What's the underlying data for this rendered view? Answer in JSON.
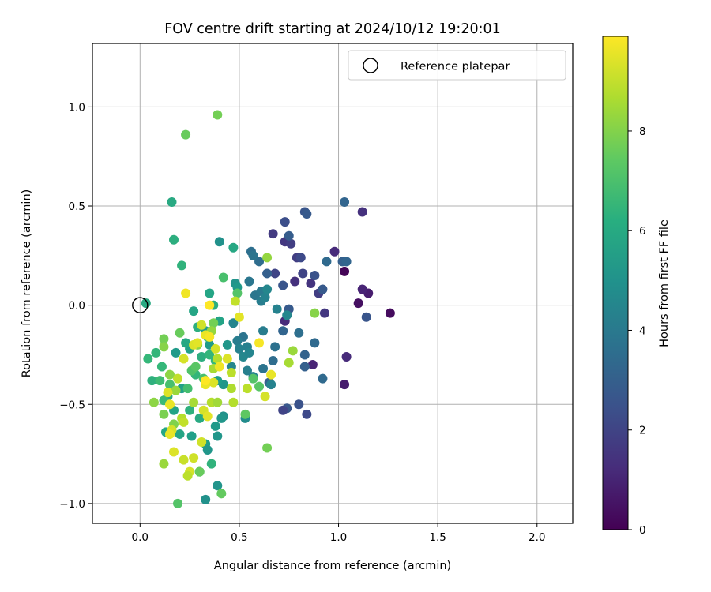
{
  "chart_data": {
    "type": "scatter",
    "title": "FOV centre drift starting at 2024/10/12 19:20:01",
    "xlabel": "Angular distance from reference (arcmin)",
    "ylabel": "Rotation from reference (arcmin)",
    "xlim": [
      -0.24,
      2.18
    ],
    "ylim": [
      -1.1,
      1.32
    ],
    "xticks": [
      0.0,
      0.5,
      1.0,
      1.5,
      2.0
    ],
    "xtick_labels": [
      "0.0",
      "0.5",
      "1.0",
      "1.5",
      "2.0"
    ],
    "yticks": [
      -1.0,
      -0.5,
      0.0,
      0.5,
      1.0
    ],
    "ytick_labels": [
      "−1.0",
      "−0.5",
      "0.0",
      "0.5",
      "1.0"
    ],
    "grid": true,
    "legend": {
      "location": "upper right",
      "entries": [
        "Reference platepar"
      ]
    },
    "reference_point": {
      "x": 0.0,
      "y": 0.0,
      "label": "Reference platepar"
    },
    "colorbar": {
      "label": "Hours from first FF file",
      "colormap": "viridis",
      "range": [
        0,
        9.9
      ],
      "ticks": [
        0,
        2,
        4,
        6,
        8
      ],
      "tick_labels": [
        "0",
        "2",
        "4",
        "6",
        "8"
      ]
    },
    "series": [
      {
        "name": "FOV centre drift",
        "color_by": "hours",
        "points": [
          [
            1.03,
            0.17,
            0.1
          ],
          [
            1.1,
            0.01,
            0.4
          ],
          [
            1.26,
            -0.04,
            0.3
          ],
          [
            1.15,
            0.06,
            0.8
          ],
          [
            1.12,
            0.08,
            1.0
          ],
          [
            1.03,
            -0.4,
            0.8
          ],
          [
            1.04,
            -0.26,
            1.2
          ],
          [
            0.87,
            -0.3,
            1.0
          ],
          [
            0.98,
            0.27,
            1.2
          ],
          [
            1.12,
            0.47,
            1.4
          ],
          [
            0.93,
            -0.04,
            1.6
          ],
          [
            0.9,
            0.06,
            1.8
          ],
          [
            0.86,
            0.11,
            1.5
          ],
          [
            0.82,
            0.16,
            2.0
          ],
          [
            0.79,
            0.24,
            1.8
          ],
          [
            0.73,
            0.32,
            1.6
          ],
          [
            0.76,
            0.31,
            1.8
          ],
          [
            0.73,
            -0.08,
            1.2
          ],
          [
            0.67,
            0.36,
            1.7
          ],
          [
            0.78,
            0.12,
            1.4
          ],
          [
            0.68,
            0.16,
            2.0
          ],
          [
            0.81,
            0.24,
            2.2
          ],
          [
            0.83,
            0.47,
            2.6
          ],
          [
            0.84,
            0.46,
            2.8
          ],
          [
            1.03,
            0.52,
            3.2
          ],
          [
            0.88,
            0.15,
            2.5
          ],
          [
            0.92,
            0.08,
            2.8
          ],
          [
            0.94,
            0.22,
            3.4
          ],
          [
            1.02,
            0.22,
            3.0
          ],
          [
            1.04,
            0.22,
            3.2
          ],
          [
            0.73,
            0.42,
            2.4
          ],
          [
            0.75,
            0.35,
            2.9
          ],
          [
            0.72,
            0.1,
            2.6
          ],
          [
            0.75,
            -0.02,
            2.8
          ],
          [
            0.64,
            0.16,
            3.0
          ],
          [
            1.14,
            -0.06,
            2.6
          ],
          [
            0.88,
            -0.19,
            3.4
          ],
          [
            0.83,
            -0.25,
            3.1
          ],
          [
            0.8,
            -0.5,
            2.5
          ],
          [
            0.84,
            -0.55,
            2.2
          ],
          [
            0.74,
            -0.52,
            2.7
          ],
          [
            0.72,
            -0.53,
            2.0
          ],
          [
            0.83,
            -0.31,
            3.0
          ],
          [
            0.92,
            -0.37,
            3.4
          ],
          [
            0.8,
            -0.14,
            3.6
          ],
          [
            0.72,
            -0.13,
            3.2
          ],
          [
            0.67,
            -0.28,
            3.5
          ],
          [
            0.68,
            -0.21,
            3.7
          ],
          [
            0.65,
            -0.39,
            3.0
          ],
          [
            0.62,
            -0.32,
            3.8
          ],
          [
            0.58,
            0.05,
            3.9
          ],
          [
            0.6,
            0.22,
            3.5
          ],
          [
            0.56,
            0.27,
            3.6
          ],
          [
            0.57,
            0.25,
            3.8
          ],
          [
            0.55,
            0.12,
            3.9
          ],
          [
            0.61,
            0.07,
            4.0
          ],
          [
            0.61,
            0.02,
            4.2
          ],
          [
            0.63,
            0.04,
            4.4
          ],
          [
            0.64,
            0.08,
            4.6
          ],
          [
            0.69,
            -0.02,
            4.4
          ],
          [
            0.74,
            -0.05,
            4.6
          ],
          [
            0.66,
            -0.4,
            4.4
          ],
          [
            0.62,
            -0.13,
            4.2
          ],
          [
            0.52,
            -0.16,
            3.8
          ],
          [
            0.54,
            -0.21,
            4.3
          ],
          [
            0.49,
            -0.18,
            4.2
          ],
          [
            0.5,
            -0.22,
            4.4
          ],
          [
            0.52,
            -0.26,
            4.6
          ],
          [
            0.55,
            -0.24,
            4.5
          ],
          [
            0.47,
            -0.09,
            4.5
          ],
          [
            0.54,
            -0.33,
            4.3
          ],
          [
            0.57,
            -0.36,
            4.4
          ],
          [
            0.46,
            -0.31,
            4.6
          ],
          [
            0.53,
            -0.57,
            4.8
          ],
          [
            0.42,
            -0.56,
            5.0
          ],
          [
            0.41,
            -0.57,
            5.2
          ],
          [
            0.39,
            -0.66,
            5.2
          ],
          [
            0.38,
            -0.61,
            5.3
          ],
          [
            0.33,
            -0.7,
            5.5
          ],
          [
            0.34,
            -0.73,
            5.2
          ],
          [
            0.39,
            -0.91,
            5.1
          ],
          [
            0.33,
            -0.98,
            5.0
          ],
          [
            0.42,
            -0.4,
            5.2
          ],
          [
            0.39,
            -0.38,
            5.5
          ],
          [
            0.35,
            -0.2,
            5.4
          ],
          [
            0.33,
            -0.13,
            5.5
          ],
          [
            0.4,
            -0.08,
            5.7
          ],
          [
            0.44,
            -0.2,
            5.2
          ],
          [
            0.48,
            0.11,
            5.1
          ],
          [
            0.49,
            0.09,
            5.3
          ],
          [
            0.4,
            0.32,
            5.0
          ],
          [
            0.47,
            0.29,
            5.9
          ],
          [
            0.35,
            0.06,
            5.8
          ],
          [
            0.37,
            0.0,
            6.2
          ],
          [
            0.27,
            -0.03,
            5.8
          ],
          [
            0.25,
            -0.22,
            5.6
          ],
          [
            0.23,
            -0.19,
            5.9
          ],
          [
            0.18,
            -0.24,
            5.4
          ],
          [
            0.21,
            -0.42,
            5.6
          ],
          [
            0.14,
            -0.46,
            6.0
          ],
          [
            0.17,
            -0.53,
            5.7
          ],
          [
            0.13,
            -0.64,
            5.9
          ],
          [
            0.2,
            -0.65,
            5.8
          ],
          [
            0.26,
            -0.66,
            5.6
          ],
          [
            0.3,
            -0.57,
            6.0
          ],
          [
            0.3,
            -0.84,
            6.0
          ],
          [
            0.36,
            -0.8,
            6.4
          ],
          [
            0.25,
            -0.53,
            6.3
          ],
          [
            0.28,
            -0.35,
            6.5
          ],
          [
            0.31,
            -0.26,
            6.2
          ],
          [
            0.35,
            -0.25,
            6.5
          ],
          [
            0.38,
            -0.28,
            6.6
          ],
          [
            0.29,
            -0.11,
            6.2
          ],
          [
            0.34,
            -0.16,
            6.8
          ],
          [
            0.21,
            0.2,
            6.4
          ],
          [
            0.16,
            0.52,
            6.0
          ],
          [
            0.17,
            0.33,
            6.2
          ],
          [
            0.03,
            0.01,
            6.0
          ],
          [
            0.08,
            -0.24,
            6.5
          ],
          [
            0.04,
            -0.27,
            6.6
          ],
          [
            0.06,
            -0.38,
            6.3
          ],
          [
            0.11,
            -0.31,
            6.6
          ],
          [
            0.1,
            -0.38,
            6.8
          ],
          [
            0.12,
            -0.48,
            6.7
          ],
          [
            0.15,
            -0.4,
            7.0
          ],
          [
            0.24,
            -0.42,
            6.9
          ],
          [
            0.26,
            -0.33,
            7.1
          ],
          [
            0.28,
            -0.31,
            7.3
          ],
          [
            0.32,
            -0.37,
            7.0
          ],
          [
            0.42,
            0.14,
            7.0
          ],
          [
            0.49,
            0.06,
            7.2
          ],
          [
            0.57,
            -0.37,
            7.2
          ],
          [
            0.6,
            -0.41,
            7.3
          ],
          [
            0.53,
            -0.55,
            7.4
          ],
          [
            0.41,
            -0.95,
            7.5
          ],
          [
            0.19,
            -1.0,
            7.2
          ],
          [
            0.3,
            -0.84,
            7.6
          ],
          [
            0.23,
            0.86,
            7.6
          ],
          [
            0.39,
            0.96,
            7.8
          ],
          [
            0.2,
            -0.14,
            7.6
          ],
          [
            0.12,
            -0.17,
            7.8
          ],
          [
            0.12,
            -0.21,
            8.1
          ],
          [
            0.12,
            -0.55,
            7.9
          ],
          [
            0.07,
            -0.49,
            8.2
          ],
          [
            0.17,
            -0.6,
            8.0
          ],
          [
            0.15,
            -0.35,
            8.2
          ],
          [
            0.18,
            -0.43,
            8.4
          ],
          [
            0.37,
            -0.09,
            7.8
          ],
          [
            0.36,
            -0.13,
            8.3
          ],
          [
            0.29,
            -0.2,
            8.2
          ],
          [
            0.37,
            -0.32,
            8.6
          ],
          [
            0.39,
            -0.27,
            8.8
          ],
          [
            0.27,
            -0.49,
            8.6
          ],
          [
            0.36,
            -0.49,
            8.8
          ],
          [
            0.39,
            -0.49,
            8.5
          ],
          [
            0.46,
            -0.34,
            8.9
          ],
          [
            0.46,
            -0.42,
            8.7
          ],
          [
            0.47,
            -0.49,
            8.8
          ],
          [
            0.54,
            -0.42,
            8.9
          ],
          [
            0.64,
            0.24,
            8.3
          ],
          [
            0.77,
            -0.23,
            8.4
          ],
          [
            0.75,
            -0.29,
            8.6
          ],
          [
            0.88,
            -0.04,
            8.1
          ],
          [
            0.64,
            -0.72,
            7.8
          ],
          [
            0.12,
            -0.8,
            8.4
          ],
          [
            0.21,
            -0.57,
            8.8
          ],
          [
            0.22,
            -0.59,
            9.0
          ],
          [
            0.22,
            -0.78,
            9.1
          ],
          [
            0.27,
            -0.77,
            9.2
          ],
          [
            0.25,
            -0.84,
            9.3
          ],
          [
            0.24,
            -0.86,
            8.9
          ],
          [
            0.15,
            -0.65,
            9.0
          ],
          [
            0.16,
            -0.63,
            9.3
          ],
          [
            0.17,
            -0.74,
            9.4
          ],
          [
            0.31,
            -0.69,
            9.2
          ],
          [
            0.32,
            -0.53,
            9.3
          ],
          [
            0.34,
            -0.56,
            9.5
          ],
          [
            0.33,
            -0.4,
            9.6
          ],
          [
            0.37,
            -0.39,
            9.4
          ],
          [
            0.38,
            -0.22,
            9.3
          ],
          [
            0.33,
            -0.15,
            9.6
          ],
          [
            0.35,
            -0.16,
            9.8
          ],
          [
            0.27,
            -0.2,
            9.4
          ],
          [
            0.29,
            -0.19,
            9.5
          ],
          [
            0.22,
            -0.27,
            9.3
          ],
          [
            0.14,
            -0.44,
            9.4
          ],
          [
            0.15,
            -0.5,
            9.6
          ],
          [
            0.5,
            -0.06,
            9.5
          ],
          [
            0.48,
            0.02,
            9.0
          ],
          [
            0.63,
            -0.46,
            9.3
          ],
          [
            0.66,
            -0.35,
            9.6
          ],
          [
            0.6,
            -0.19,
            9.8
          ],
          [
            0.4,
            -0.31,
            9.7
          ],
          [
            0.44,
            -0.27,
            9.4
          ],
          [
            0.23,
            0.06,
            9.7
          ],
          [
            0.35,
            0.0,
            9.9
          ],
          [
            0.31,
            -0.1,
            9.2
          ],
          [
            0.33,
            -0.38,
            9.9
          ],
          [
            0.19,
            -0.37,
            9.0
          ],
          [
            0.15,
            -0.65,
            9.6
          ]
        ]
      }
    ]
  }
}
